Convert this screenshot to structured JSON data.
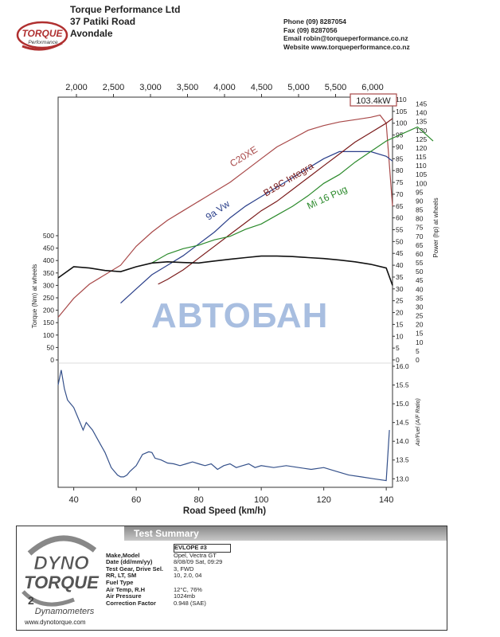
{
  "header": {
    "company": [
      "Torque Performance Ltd",
      "37 Patiki Road",
      "Avondale"
    ],
    "logo_text": [
      "TORQUE",
      "Performance"
    ],
    "contact": [
      "Phone (09) 8287054",
      "Fax     (09) 8287056",
      "Email  robin@torqueperformance.co.nz",
      "Website  www.torqueperformance.co.nz"
    ]
  },
  "watermark": "АВТОБАН",
  "chart_data": {
    "type": "line",
    "x_axis_bottom": {
      "label": "Road Speed (km/h)",
      "ticks": [
        40,
        60,
        80,
        100,
        120,
        140
      ],
      "range": [
        35,
        142
      ]
    },
    "x_axis_top": {
      "label": "",
      "ticks": [
        "2,000",
        "2,500",
        "3,000",
        "3,500",
        "4,000",
        "4,500",
        "5,000",
        "5,500",
        "6,000"
      ]
    },
    "y_axis_torque": {
      "label": "Torque (Nm) at wheels",
      "ticks": [
        0,
        50,
        100,
        150,
        200,
        250,
        300,
        350,
        400,
        450,
        500
      ],
      "range": [
        0,
        500
      ]
    },
    "y_axis_power_kw": {
      "ticks": [
        0,
        5,
        10,
        15,
        20,
        25,
        30,
        35,
        40,
        45,
        50,
        55,
        60,
        65,
        70,
        75,
        80,
        85,
        90,
        95,
        100,
        105,
        110
      ],
      "range": [
        0,
        110
      ]
    },
    "y_axis_power_hp": {
      "label": "Power (hp) at wheels",
      "ticks": [
        0,
        5,
        10,
        15,
        20,
        25,
        30,
        35,
        40,
        45,
        50,
        55,
        60,
        65,
        70,
        75,
        80,
        85,
        90,
        95,
        100,
        105,
        110,
        115,
        120,
        125,
        130,
        135,
        140,
        145
      ],
      "range": [
        0,
        147.5
      ]
    },
    "y_axis_afr": {
      "label": "Air/Fuel (A/F Ratio)",
      "ticks": [
        13.0,
        13.5,
        14.0,
        14.5,
        15.0,
        15.5,
        16.0
      ],
      "range": [
        12.9,
        16.0
      ]
    },
    "peak_label": "103.4kW",
    "series": [
      {
        "name": "C20XE",
        "axis": "kw",
        "color": "#a84848",
        "x": [
          35,
          40,
          45,
          50,
          55,
          60,
          65,
          70,
          75,
          80,
          85,
          90,
          95,
          100,
          105,
          110,
          115,
          120,
          125,
          130,
          135,
          138,
          140,
          142
        ],
        "y": [
          18,
          26,
          32,
          36,
          40,
          48,
          54,
          59,
          63,
          67,
          71,
          75,
          80,
          85,
          90,
          93.5,
          97,
          99,
          100.5,
          101.5,
          102.5,
          103.4,
          100,
          65
        ]
      },
      {
        "name": "9a Vw",
        "axis": "kw",
        "color": "#2a3f8a",
        "x": [
          55,
          60,
          65,
          70,
          75,
          80,
          85,
          90,
          95,
          100,
          105,
          110,
          115,
          120,
          125,
          130,
          135,
          140,
          142
        ],
        "y": [
          24,
          30,
          36,
          40,
          44,
          49,
          54,
          60,
          65,
          69,
          73,
          77,
          81,
          85,
          88,
          88,
          88,
          86,
          84
        ]
      },
      {
        "name": "B18C Integra",
        "axis": "kw",
        "color": "#7a1a1a",
        "x": [
          67,
          70,
          75,
          80,
          85,
          90,
          95,
          100,
          105,
          110,
          115,
          120,
          125,
          130,
          135,
          140,
          142
        ],
        "y": [
          32,
          34,
          38,
          43,
          48,
          53,
          58,
          63,
          67,
          72,
          77,
          82,
          87,
          92,
          96,
          100,
          102
        ]
      },
      {
        "name": "Mi 16 Pug",
        "axis": "hp",
        "color": "#2b8a2b",
        "x": [
          65,
          70,
          75,
          80,
          85,
          90,
          95,
          100,
          105,
          110,
          115,
          120,
          125,
          130,
          135,
          140,
          145,
          150,
          155
        ],
        "y": [
          55,
          60,
          63,
          65,
          68,
          70,
          74,
          77,
          82,
          87,
          93,
          100,
          105,
          112,
          118,
          124,
          128,
          132,
          124
        ]
      },
      {
        "name": "",
        "axis": "torque",
        "color": "#111111",
        "x": [
          35,
          40,
          45,
          50,
          55,
          60,
          65,
          70,
          75,
          80,
          85,
          90,
          95,
          100,
          105,
          110,
          115,
          120,
          125,
          130,
          135,
          140,
          142
        ],
        "y": [
          330,
          375,
          370,
          360,
          355,
          375,
          390,
          395,
          392,
          390,
          398,
          405,
          412,
          418,
          418,
          416,
          412,
          408,
          402,
          395,
          385,
          370,
          300
        ]
      },
      {
        "name": "",
        "axis": "afr",
        "color": "#34508a",
        "x": [
          35,
          36,
          37,
          38,
          40,
          42,
          43,
          44,
          46,
          48,
          50,
          52,
          54,
          55,
          56,
          57,
          58,
          60,
          62,
          64,
          65,
          66,
          68,
          70,
          72,
          74,
          76,
          78,
          80,
          82,
          84,
          86,
          88,
          90,
          92,
          94,
          96,
          98,
          100,
          104,
          108,
          112,
          116,
          120,
          124,
          128,
          132,
          136,
          140,
          141
        ],
        "y": [
          15.5,
          15.9,
          15.4,
          15.1,
          14.9,
          14.5,
          14.3,
          14.5,
          14.3,
          14.0,
          13.7,
          13.3,
          13.1,
          13.05,
          13.05,
          13.1,
          13.2,
          13.35,
          13.65,
          13.72,
          13.7,
          13.55,
          13.5,
          13.42,
          13.4,
          13.35,
          13.4,
          13.45,
          13.4,
          13.35,
          13.4,
          13.25,
          13.35,
          13.4,
          13.3,
          13.35,
          13.4,
          13.3,
          13.35,
          13.3,
          13.35,
          13.3,
          13.25,
          13.3,
          13.2,
          13.1,
          13.05,
          13.0,
          12.95,
          14.3
        ]
      }
    ]
  },
  "summary": {
    "title": "Test Summary",
    "brand": [
      "DYNO",
      "TORQUE",
      "Dynamometers"
    ],
    "website": "www.dynotorque.com",
    "rows": [
      {
        "label": "",
        "value": "EVLOPE  #3"
      },
      {
        "label": "Make,Model",
        "value": "Opel, Vectra GT"
      },
      {
        "label": "Date (dd/mm/yy)",
        "value": "8/08/09 Sat, 09:29"
      },
      {
        "label": "Test Gear, Drive Sel.",
        "value": "3, FWD"
      },
      {
        "label": "RR, LT, SM",
        "value": "10,    2.0,    04"
      },
      {
        "label": "Fuel Type",
        "value": ""
      },
      {
        "label": "Air Temp, R.H",
        "value": "12°C,     76%"
      },
      {
        "label": "Air Pressure",
        "value": "1024mb"
      },
      {
        "label": "Correction Factor",
        "value": "0.948 (SAE)"
      }
    ]
  }
}
